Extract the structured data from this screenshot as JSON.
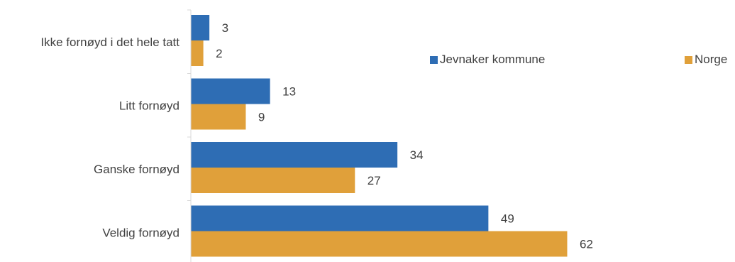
{
  "chart_data": {
    "type": "bar",
    "orientation": "horizontal",
    "categories": [
      "Ikke fornøyd i det hele tatt",
      "Litt fornøyd",
      "Ganske fornøyd",
      "Veldig fornøyd"
    ],
    "series": [
      {
        "name": "Jevnaker kommune",
        "color": "#2e6db4",
        "values": [
          3,
          13,
          34,
          49
        ]
      },
      {
        "name": "Norge",
        "color": "#e0a03a",
        "values": [
          2,
          9,
          27,
          62
        ]
      }
    ],
    "xlim": [
      0,
      70
    ],
    "grid": false,
    "legend": "top-right"
  }
}
